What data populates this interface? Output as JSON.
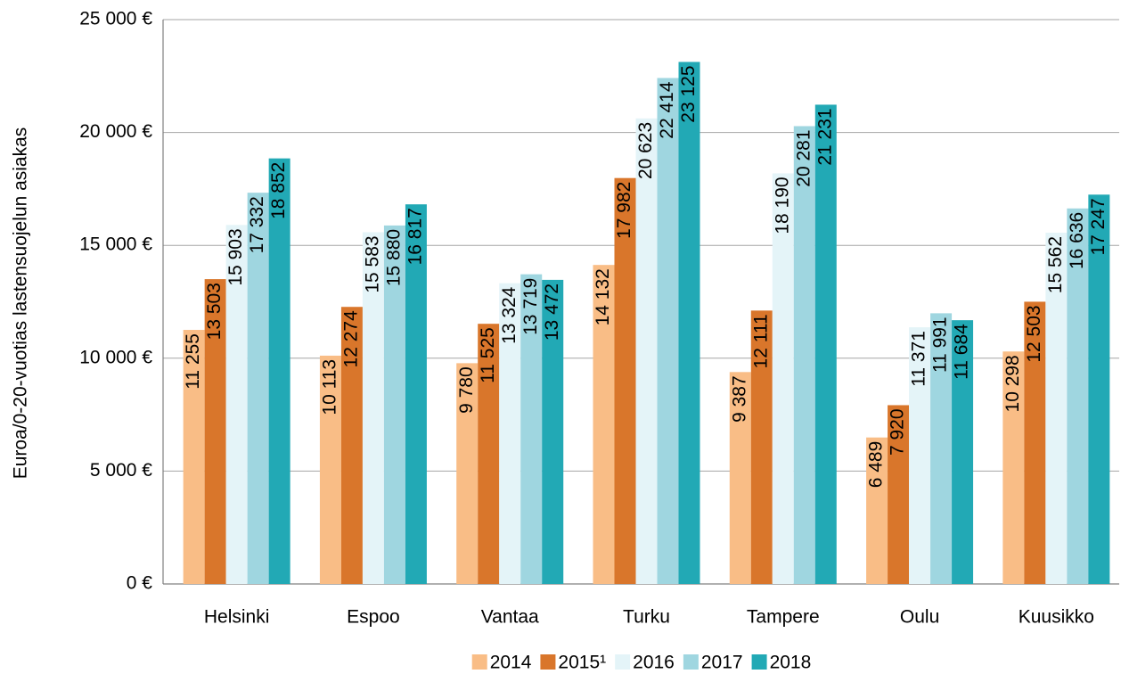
{
  "chart_data": {
    "type": "bar",
    "ylabel": "Euroa/0-20-vuotias lastensuojelun asiakas",
    "categories": [
      "Helsinki",
      "Espoo",
      "Vantaa",
      "Turku",
      "Tampere",
      "Oulu",
      "Kuusikko"
    ],
    "series": [
      {
        "name": "2014",
        "color": "#f9bd86",
        "values": [
          11255,
          10113,
          9780,
          14132,
          9387,
          6489,
          10298
        ],
        "value_labels": [
          "11 255",
          "10 113",
          "9 780",
          "14 132",
          "9 387",
          "6 489",
          "10 298"
        ]
      },
      {
        "name": "2015¹",
        "color": "#d9762b",
        "values": [
          13503,
          12274,
          11525,
          17982,
          12111,
          7920,
          12503
        ],
        "value_labels": [
          "13 503",
          "12 274",
          "11 525",
          "17 982",
          "12 111",
          "7 920",
          "12 503"
        ]
      },
      {
        "name": "2016",
        "color": "#e4f4f8",
        "values": [
          15903,
          15583,
          13324,
          20623,
          18190,
          11371,
          15562
        ],
        "value_labels": [
          "15 903",
          "15 583",
          "13 324",
          "20 623",
          "18 190",
          "11 371",
          "15 562"
        ]
      },
      {
        "name": "2017",
        "color": "#9fd6e0",
        "values": [
          17332,
          15880,
          13719,
          22414,
          20281,
          11991,
          16636
        ],
        "value_labels": [
          "17 332",
          "15 880",
          "13 719",
          "22 414",
          "20 281",
          "11 991",
          "16 636"
        ]
      },
      {
        "name": "2018",
        "color": "#22a9b5",
        "values": [
          18852,
          16817,
          13472,
          23125,
          21231,
          11684,
          17247
        ],
        "value_labels": [
          "18 852",
          "16 817",
          "13 472",
          "23 125",
          "21 231",
          "11 684",
          "17 247"
        ]
      }
    ],
    "ylim": [
      0,
      25000
    ],
    "yticks": [
      {
        "value": 0,
        "label": "0 €"
      },
      {
        "value": 5000,
        "label": "5 000 €"
      },
      {
        "value": 10000,
        "label": "10 000 €"
      },
      {
        "value": 15000,
        "label": "15 000 €"
      },
      {
        "value": 20000,
        "label": "20 000 €"
      },
      {
        "value": 25000,
        "label": "25 000 €"
      }
    ],
    "grid": true,
    "legend": "bottom"
  }
}
